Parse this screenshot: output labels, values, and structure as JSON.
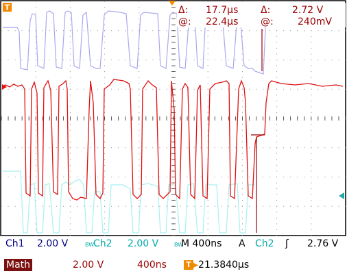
{
  "cursor": {
    "delta_symbol": "Δ:",
    "delta_time": "17.7µs",
    "delta_volt_symbol": "Δ:",
    "delta_volt": "2.72 V",
    "at_symbol": "@:",
    "at_time": "22.4µs",
    "at_volt_symbol": "@:",
    "at_volt": "240mV"
  },
  "markers": {
    "trigger_top": "T",
    "ch_marker_left_top": "1",
    "ch_marker_left_bottom": "2"
  },
  "status": {
    "ch1_label": "Ch1",
    "ch1_scale": "2.00 V",
    "ch2_bw": "BW",
    "ch2_label": "Ch2",
    "ch2_scale": "2.00 V",
    "timebase_bw": "BW",
    "timebase": "M 400ns",
    "acq_mode": "A",
    "trig_source": "Ch2",
    "trig_slope": "ʃ",
    "trig_level": "2.76 V",
    "math_label": "Math",
    "math_scale": "2.00 V",
    "math_time": "400ns",
    "trig_pos_badge": "T",
    "trig_pos_arrow": "▸",
    "trig_pos": "21.3840µs"
  },
  "colors": {
    "blue_trace": "#a0a0f0",
    "red_trace": "#e01010",
    "cyan_trace": "#a0f0f0",
    "grid": "#000000",
    "accent": "#f08a00"
  }
}
